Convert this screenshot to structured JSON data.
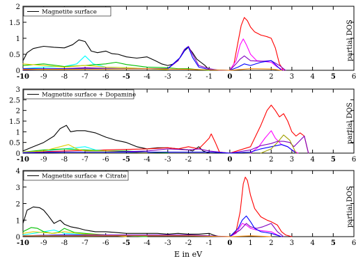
{
  "chart_data": [
    {
      "type": "line",
      "legend": "Magnetite surface",
      "legend_position": "top-left",
      "ylim": [
        0,
        2
      ],
      "yticks": [
        0,
        0.5,
        1,
        1.5,
        2
      ],
      "xlim": [
        -10,
        6
      ],
      "xticks": [
        -10,
        -9,
        -8,
        -7,
        -6,
        -5,
        -4,
        -3,
        -2,
        -1,
        0,
        1,
        2,
        3,
        4,
        5,
        6
      ],
      "bold_xticks": [
        -10,
        -5,
        0,
        5
      ],
      "right_label": "partial DOS",
      "series": [
        {
          "color": "#000000",
          "x": [
            -10,
            -9.8,
            -9.5,
            -9,
            -8.5,
            -8,
            -7.6,
            -7.3,
            -7,
            -6.7,
            -6.4,
            -6,
            -5.7,
            -5.4,
            -5,
            -4.5,
            -4,
            -3.6,
            -3.3,
            -3,
            -2.7,
            -2.4,
            -2.2,
            -2,
            -1.8,
            -1.6,
            -1.4,
            -1.2,
            -1
          ],
          "y": [
            0.3,
            0.55,
            0.68,
            0.75,
            0.72,
            0.7,
            0.8,
            0.95,
            0.9,
            0.6,
            0.55,
            0.6,
            0.52,
            0.5,
            0.42,
            0.38,
            0.42,
            0.3,
            0.2,
            0.15,
            0.2,
            0.4,
            0.6,
            0.72,
            0.55,
            0.35,
            0.25,
            0.15,
            0.02
          ]
        },
        {
          "color": "#ff0000",
          "x": [
            0,
            0.2,
            0.4,
            0.55,
            0.7,
            0.85,
            1,
            1.2,
            1.5,
            1.8,
            2,
            2.2,
            2.4,
            2.6
          ],
          "y": [
            0,
            0.2,
            0.9,
            1.4,
            1.65,
            1.55,
            1.35,
            1.2,
            1.1,
            1.05,
            1.0,
            0.7,
            0.2,
            0
          ]
        },
        {
          "color": "#00ffff",
          "x": [
            -10,
            -9,
            -8,
            -7.4,
            -7,
            -6.6,
            -6,
            -5,
            -4,
            -3
          ],
          "y": [
            0.05,
            0.1,
            0.12,
            0.2,
            0.45,
            0.2,
            0.1,
            0.08,
            0.05,
            0.02
          ]
        },
        {
          "color": "#00c000",
          "x": [
            -10,
            -9,
            -8,
            -7,
            -6,
            -5.5,
            -5,
            -4,
            -3,
            -2.5,
            -2,
            -1.5,
            -1
          ],
          "y": [
            0.15,
            0.2,
            0.12,
            0.15,
            0.2,
            0.25,
            0.18,
            0.1,
            0.08,
            0.05,
            0.05,
            0.02,
            0
          ]
        },
        {
          "color": "#e0d000",
          "x": [
            -10,
            -9,
            -8,
            -7,
            -6,
            -5,
            -4,
            -3
          ],
          "y": [
            0.2,
            0.15,
            0.1,
            0.15,
            0.1,
            0.08,
            0.05,
            0.02
          ]
        },
        {
          "color": "#ff00ff",
          "x": [
            0,
            0.3,
            0.5,
            0.65,
            0.8,
            1,
            1.3,
            1.6,
            2,
            2.3,
            2.6
          ],
          "y": [
            0,
            0.3,
            0.8,
            0.98,
            0.8,
            0.5,
            0.3,
            0.28,
            0.25,
            0.1,
            0
          ]
        },
        {
          "color": "#8000c0",
          "x": [
            -10,
            -9,
            -8,
            -7,
            -6,
            -5,
            -4,
            -3,
            -2.5,
            -2.2,
            -2,
            -1.8,
            -1.5,
            -1,
            -0.5,
            0,
            0.3,
            0.5,
            0.7,
            1,
            1.5,
            2,
            2.4,
            2.7
          ],
          "y": [
            0.02,
            0.04,
            0.05,
            0.08,
            0.06,
            0.05,
            0.05,
            0.05,
            0.3,
            0.65,
            0.75,
            0.5,
            0.15,
            0.05,
            0,
            0,
            0.2,
            0.35,
            0.45,
            0.3,
            0.28,
            0.3,
            0.15,
            0
          ]
        },
        {
          "color": "#0000ff",
          "x": [
            -10,
            -8,
            -6,
            -4,
            -3,
            -2.4,
            -2.1,
            -2,
            -1.8,
            -1.5,
            -1,
            0,
            0.4,
            0.7,
            1,
            1.5,
            2,
            2.5
          ],
          "y": [
            0.05,
            0.05,
            0.05,
            0.05,
            0.05,
            0.4,
            0.7,
            0.72,
            0.4,
            0.1,
            0.02,
            0,
            0.1,
            0.2,
            0.15,
            0.25,
            0.3,
            0
          ]
        },
        {
          "color": "#ff8c00",
          "x": [
            -10,
            -8,
            -6,
            -4,
            -2,
            0,
            1,
            2,
            2.5
          ],
          "y": [
            0.03,
            0.03,
            0.04,
            0.05,
            0.03,
            0,
            0.05,
            0.04,
            0
          ]
        }
      ]
    },
    {
      "type": "line",
      "legend": "Magnetite surface + Dopamine",
      "legend_position": "top-left",
      "ylim": [
        0,
        3
      ],
      "yticks": [
        0,
        0.5,
        1,
        1.5,
        2,
        2.5,
        3
      ],
      "xlim": [
        -10,
        6
      ],
      "xticks": [
        -10,
        -9,
        -8,
        -7,
        -6,
        -5,
        -4,
        -3,
        -2,
        -1,
        0,
        1,
        2,
        3,
        4,
        5,
        6
      ],
      "bold_xticks": [
        -10,
        -5,
        0,
        5
      ],
      "right_label": "partial DOS",
      "series": [
        {
          "color": "#000000",
          "x": [
            -10,
            -9.5,
            -9,
            -8.5,
            -8.2,
            -7.9,
            -7.7,
            -7.4,
            -7,
            -6.5,
            -6,
            -5.5,
            -5,
            -4.5,
            -4,
            -3.5,
            -3,
            -2.5,
            -2,
            -1.8,
            -1.5,
            -1.3,
            -1
          ],
          "y": [
            0.1,
            0.3,
            0.5,
            0.8,
            1.15,
            1.3,
            1.0,
            1.05,
            1.05,
            0.95,
            0.75,
            0.6,
            0.5,
            0.3,
            0.2,
            0.25,
            0.25,
            0.2,
            0.15,
            0.1,
            0.3,
            0.1,
            0
          ]
        },
        {
          "color": "#ff0000",
          "x": [
            -10,
            -8,
            -6,
            -4,
            -3,
            -2.5,
            -2,
            -1.5,
            -1.2,
            -1,
            -0.9,
            -0.7,
            -0.5,
            0,
            1,
            1.5,
            1.8,
            2,
            2.2,
            2.4,
            2.6,
            2.8,
            3,
            3.2,
            3.4,
            3.6,
            3.8
          ],
          "y": [
            0.05,
            0.1,
            0.15,
            0.2,
            0.25,
            0.2,
            0.3,
            0.2,
            0.5,
            0.7,
            0.9,
            0.5,
            0.05,
            0,
            0.3,
            1.3,
            2.0,
            2.25,
            2.0,
            1.7,
            1.85,
            1.5,
            1.0,
            0.8,
            0.95,
            0.8,
            0
          ]
        },
        {
          "color": "#00ffff",
          "x": [
            -10,
            -9,
            -8,
            -7,
            -6.5,
            -6,
            -5,
            -4
          ],
          "y": [
            0.05,
            0.1,
            0.2,
            0.3,
            0.15,
            0.1,
            0.05,
            0.02
          ]
        },
        {
          "color": "#00c000",
          "x": [
            -10,
            -9,
            -8,
            -7,
            -6,
            -5,
            -4,
            -3
          ],
          "y": [
            0.05,
            0.15,
            0.2,
            0.15,
            0.1,
            0.1,
            0.05,
            0.02
          ]
        },
        {
          "color": "#e0d000",
          "x": [
            -10,
            -9,
            -8.2,
            -7.8,
            -7.4,
            -7,
            -6,
            -5,
            -4
          ],
          "y": [
            0.05,
            0.1,
            0.3,
            0.4,
            0.2,
            0.1,
            0.1,
            0.05,
            0.02
          ]
        },
        {
          "color": "#ff00ff",
          "x": [
            1,
            1.4,
            1.7,
            2,
            2.2,
            2.5,
            2.8,
            3,
            3.3
          ],
          "y": [
            0,
            0.3,
            0.7,
            1.05,
            0.7,
            0.4,
            0.3,
            0.15,
            0
          ]
        },
        {
          "color": "#8000c0",
          "x": [
            -10,
            -8,
            -6,
            -4,
            -3,
            -2,
            -1.5,
            -1,
            0,
            1,
            1.5,
            2,
            2.3,
            2.6,
            2.9,
            3.1,
            3.4,
            3.6,
            3.8
          ],
          "y": [
            0.02,
            0.05,
            0.05,
            0.1,
            0.2,
            0.15,
            0.2,
            0.1,
            0,
            0.15,
            0.35,
            0.45,
            0.55,
            0.55,
            0.5,
            0.3,
            0.6,
            0.8,
            0
          ]
        },
        {
          "color": "#0000ff",
          "x": [
            -10,
            -8,
            -6,
            -4,
            -2,
            -1,
            0,
            1,
            1.5,
            2,
            2.5,
            2.8,
            3.2
          ],
          "y": [
            0.02,
            0.05,
            0.05,
            0.05,
            0.05,
            0.05,
            0,
            0.05,
            0.2,
            0.3,
            0.4,
            0.3,
            0
          ]
        },
        {
          "color": "#a0a000",
          "x": [
            1.5,
            2,
            2.3,
            2.6,
            2.9,
            3.2
          ],
          "y": [
            0,
            0.2,
            0.5,
            0.85,
            0.6,
            0
          ]
        }
      ]
    },
    {
      "type": "line",
      "legend": "Magnetite surface  + Citrate",
      "legend_position": "top-left",
      "ylim": [
        0,
        4
      ],
      "yticks": [
        0,
        1,
        2,
        3,
        4
      ],
      "xlim": [
        -10,
        6
      ],
      "xticks": [
        -10,
        -9,
        -8,
        -7,
        -6,
        -5,
        -4,
        -3,
        -2,
        -1,
        0,
        1,
        2,
        3,
        4,
        5,
        6
      ],
      "bold_xticks": [
        -10,
        -5,
        0,
        5
      ],
      "xlabel": "E in eV",
      "right_label": "partial DOS",
      "series": [
        {
          "color": "#000000",
          "x": [
            -10,
            -9.8,
            -9.5,
            -9.2,
            -9,
            -8.8,
            -8.5,
            -8.2,
            -8,
            -7.7,
            -7.3,
            -7,
            -6.5,
            -6,
            -5.5,
            -5,
            -4.5,
            -4,
            -3.5,
            -3,
            -2.5,
            -2,
            -1.5,
            -1,
            -0.8,
            -0.5
          ],
          "y": [
            0.8,
            1.6,
            1.8,
            1.75,
            1.6,
            1.3,
            0.8,
            1.0,
            0.75,
            0.6,
            0.5,
            0.4,
            0.3,
            0.3,
            0.25,
            0.2,
            0.2,
            0.2,
            0.2,
            0.15,
            0.2,
            0.15,
            0.15,
            0.2,
            0.1,
            0
          ]
        },
        {
          "color": "#ff0000",
          "x": [
            0,
            0.3,
            0.5,
            0.65,
            0.75,
            0.85,
            1,
            1.2,
            1.5,
            1.8,
            2,
            2.3,
            2.5,
            2.7,
            3
          ],
          "y": [
            0,
            0.3,
            1.5,
            3.2,
            3.6,
            3.4,
            2.5,
            1.7,
            1.2,
            1.0,
            0.9,
            0.7,
            0.3,
            0.1,
            0
          ]
        },
        {
          "color": "#00ffff",
          "x": [
            -10,
            -9.5,
            -9,
            -8.5,
            -8,
            -7,
            -6,
            -5,
            -4
          ],
          "y": [
            0.1,
            0.2,
            0.3,
            0.4,
            0.2,
            0.15,
            0.1,
            0.05,
            0
          ]
        },
        {
          "color": "#00c000",
          "x": [
            -10,
            -9.6,
            -9.3,
            -9,
            -8.6,
            -8.3,
            -8,
            -7.5,
            -7,
            -6,
            -5,
            -4
          ],
          "y": [
            0.3,
            0.55,
            0.5,
            0.3,
            0.2,
            0.25,
            0.5,
            0.25,
            0.2,
            0.1,
            0.05,
            0
          ]
        },
        {
          "color": "#e0d000",
          "x": [
            -10,
            -9.5,
            -9,
            -8.5,
            -8,
            -7,
            -6,
            -5
          ],
          "y": [
            0.2,
            0.3,
            0.25,
            0.2,
            0.3,
            0.15,
            0.1,
            0
          ]
        },
        {
          "color": "#ff00ff",
          "x": [
            0,
            0.3,
            0.6,
            0.8,
            1,
            1.3,
            1.6,
            2,
            2.3,
            2.5
          ],
          "y": [
            0,
            0.2,
            0.8,
            0.7,
            0.5,
            0.4,
            0.35,
            0.3,
            0.1,
            0
          ]
        },
        {
          "color": "#8000c0",
          "x": [
            -10,
            -8,
            -6,
            -4,
            -2,
            -1,
            0,
            0.5,
            0.8,
            1,
            1.3,
            1.6,
            2,
            2.3,
            2.6
          ],
          "y": [
            0.05,
            0.1,
            0.1,
            0.1,
            0.1,
            0.05,
            0,
            0.4,
            0.8,
            0.6,
            0.5,
            0.6,
            0.8,
            0.3,
            0
          ]
        },
        {
          "color": "#0000ff",
          "x": [
            -10,
            -8,
            -6,
            -4,
            -2,
            0,
            0.4,
            0.6,
            0.8,
            1,
            1.2,
            1.5,
            2,
            2.5
          ],
          "y": [
            0.05,
            0.1,
            0.05,
            0.05,
            0.05,
            0,
            0.5,
            1.0,
            1.25,
            0.9,
            0.5,
            0.3,
            0.2,
            0
          ]
        },
        {
          "color": "#ff8c00",
          "x": [
            -10,
            -8,
            -6,
            -4,
            -2,
            0,
            1,
            2
          ],
          "y": [
            0.05,
            0.05,
            0.05,
            0.05,
            0.05,
            0,
            0.05,
            0
          ]
        }
      ]
    }
  ]
}
